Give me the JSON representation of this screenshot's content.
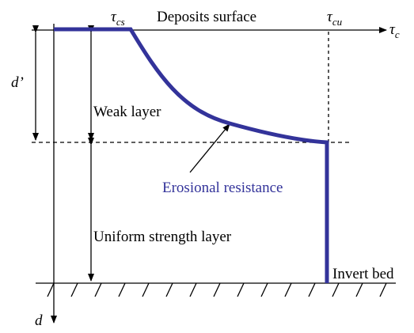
{
  "axis_labels": {
    "tau_cs": {
      "symbol": "τ",
      "subscript": "cs"
    },
    "tau_cu": {
      "symbol": "τ",
      "subscript": "cu"
    },
    "tau_c": {
      "symbol": "τ",
      "subscript": "c"
    },
    "d": "d",
    "d_prime": "d’"
  },
  "labels": {
    "surface": "Deposits surface",
    "weak_layer": "Weak layer",
    "curve": "Erosional resistance",
    "uniform_layer": "Uniform strength layer",
    "bed": "Invert bed"
  }
}
